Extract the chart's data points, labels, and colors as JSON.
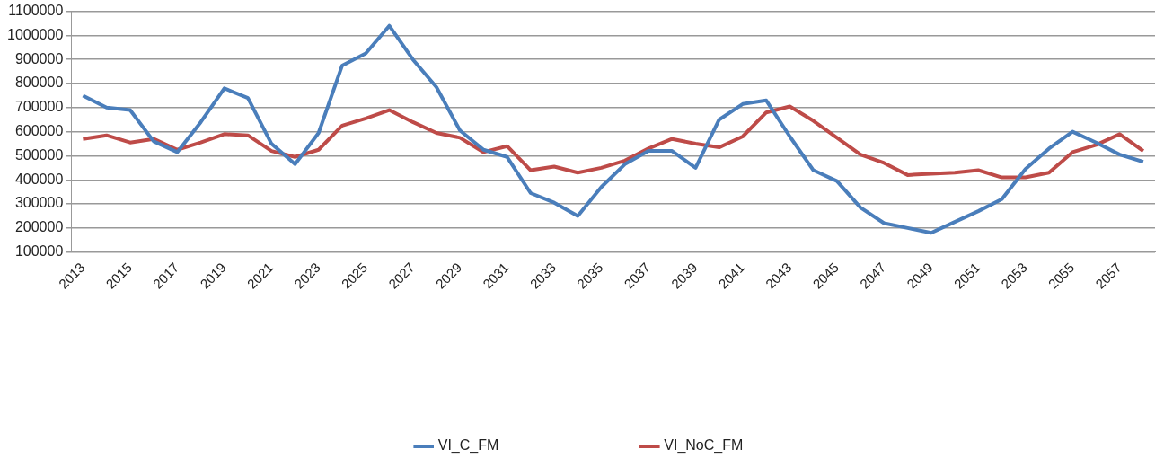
{
  "chart_data": {
    "type": "line",
    "categories": [
      "2013",
      null,
      "2015",
      null,
      "2017",
      null,
      "2019",
      null,
      "2021",
      null,
      "2023",
      null,
      "2025",
      null,
      "2027",
      null,
      "2029",
      null,
      "2031",
      null,
      "2033",
      null,
      "2035",
      null,
      "2037",
      null,
      "2039",
      null,
      "2041",
      null,
      "2043",
      null,
      "2045",
      null,
      "2047",
      null,
      "2049",
      null,
      "2051",
      null,
      "2053",
      null,
      "2055",
      null,
      "2057",
      null
    ],
    "series": [
      {
        "name": "VI_C_FM",
        "color": "#4a7ebb",
        "values": [
          750000,
          700000,
          690000,
          560000,
          515000,
          640000,
          780000,
          740000,
          550000,
          465000,
          595000,
          875000,
          925000,
          1040000,
          900000,
          785000,
          605000,
          525000,
          495000,
          345000,
          305000,
          250000,
          370000,
          465000,
          520000,
          520000,
          450000,
          650000,
          715000,
          730000,
          580000,
          440000,
          395000,
          285000,
          220000,
          200000,
          180000,
          225000,
          270000,
          320000,
          445000,
          530000,
          600000,
          555000,
          505000,
          475000
        ]
      },
      {
        "name": "VI_NoC_FM",
        "color": "#be4b48",
        "values": [
          570000,
          585000,
          555000,
          570000,
          525000,
          555000,
          590000,
          585000,
          520000,
          495000,
          525000,
          625000,
          655000,
          690000,
          640000,
          595000,
          575000,
          515000,
          540000,
          440000,
          455000,
          430000,
          450000,
          480000,
          530000,
          570000,
          550000,
          535000,
          580000,
          680000,
          705000,
          645000,
          575000,
          505000,
          470000,
          420000,
          425000,
          430000,
          440000,
          410000,
          410000,
          430000,
          515000,
          545000,
          590000,
          520000
        ]
      }
    ],
    "ylim": [
      100000,
      1100000
    ],
    "yticks": [
      100000,
      200000,
      300000,
      400000,
      500000,
      600000,
      700000,
      800000,
      900000,
      1000000,
      1100000
    ],
    "grid": "y",
    "legend": "bottom",
    "marker": "none",
    "line_style": "solid"
  }
}
